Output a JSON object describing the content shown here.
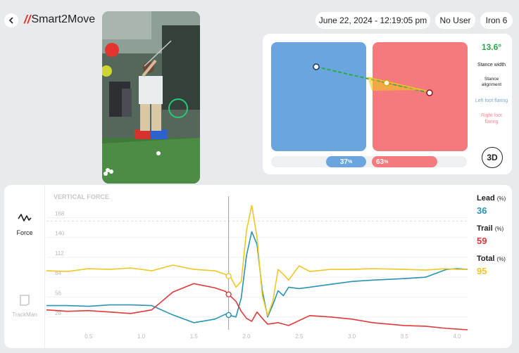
{
  "header": {
    "app_name": "Smart2Move",
    "datetime": "June 22, 2024 - 12:19:05 pm",
    "user": "No User",
    "club": "Iron 6"
  },
  "stance": {
    "angle": "13.6°",
    "labels": {
      "stance_width": "Stance width",
      "stance_alignment": "Stance alignment",
      "left_foot_flaring": "Left foot flaring",
      "right_foot_flaring": "Right foot flaring"
    },
    "left_pct": "37",
    "right_pct": "63",
    "pct_unit": "%",
    "view_button": "3D"
  },
  "sidebar": {
    "force_label": "Force",
    "trackman_label": "TrackMan"
  },
  "chart_title": "VERTICAL FORCE",
  "legend": {
    "lead_label": "Lead",
    "lead_unit": "(%)",
    "lead_value": "36",
    "trail_label": "Trail",
    "trail_unit": "(%)",
    "trail_value": "59",
    "total_label": "Total",
    "total_unit": "(%)",
    "total_value": "95"
  },
  "colors": {
    "lead": "#2a93b5",
    "trail": "#e0393b",
    "total": "#f2c624",
    "left_box": "#6aa6dd",
    "right_box": "#f47a7d",
    "accent_green": "#2aa84a"
  },
  "chart_data": {
    "type": "line",
    "title": "VERTICAL FORCE",
    "xlabel": "",
    "ylabel": "",
    "xlim": [
      0.1,
      4.1
    ],
    "ylim": [
      10,
      198
    ],
    "x_ticks": [
      "0.5",
      "1.0",
      "1.5",
      "2.0",
      "2.5",
      "3.0",
      "3.5",
      "4.0"
    ],
    "x_tick_values": [
      0.5,
      1.0,
      1.5,
      2.0,
      2.5,
      3.0,
      3.5,
      4.0
    ],
    "y_ticks": [
      "28",
      "56",
      "84",
      "112",
      "140",
      "168"
    ],
    "y_tick_values": [
      28,
      56,
      84,
      112,
      140,
      168
    ],
    "cursor_x": 1.83,
    "series": [
      {
        "name": "Lead",
        "x": [
          0.1,
          0.3,
          0.5,
          0.7,
          0.9,
          1.1,
          1.3,
          1.5,
          1.7,
          1.8,
          1.9,
          1.95,
          2.0,
          2.05,
          2.1,
          2.15,
          2.2,
          2.25,
          2.3,
          2.35,
          2.4,
          2.5,
          2.6,
          2.8,
          3.0,
          3.2,
          3.5,
          3.7,
          3.9,
          4.0,
          4.1
        ],
        "y": [
          44,
          44,
          43,
          45,
          45,
          44,
          31,
          20,
          25,
          32,
          28,
          55,
          115,
          148,
          130,
          65,
          28,
          45,
          65,
          58,
          70,
          68,
          70,
          74,
          78,
          80,
          82,
          84,
          95,
          96,
          95
        ]
      },
      {
        "name": "Trail",
        "x": [
          0.1,
          0.3,
          0.5,
          0.7,
          0.9,
          1.1,
          1.3,
          1.5,
          1.7,
          1.8,
          1.9,
          1.95,
          2.0,
          2.05,
          2.1,
          2.15,
          2.2,
          2.3,
          2.4,
          2.6,
          2.8,
          3.0,
          3.2,
          3.5,
          3.7,
          3.9,
          4.1
        ],
        "y": [
          38,
          36,
          37,
          35,
          33,
          38,
          63,
          75,
          69,
          64,
          50,
          36,
          26,
          22,
          35,
          26,
          18,
          20,
          16,
          30,
          28,
          25,
          20,
          16,
          15,
          12,
          10
        ]
      },
      {
        "name": "Total",
        "x": [
          0.1,
          0.3,
          0.5,
          0.7,
          0.9,
          1.1,
          1.3,
          1.5,
          1.7,
          1.8,
          1.85,
          1.9,
          1.95,
          2.0,
          2.05,
          2.1,
          2.15,
          2.2,
          2.25,
          2.3,
          2.35,
          2.4,
          2.5,
          2.6,
          2.8,
          3.0,
          3.2,
          3.5,
          3.7,
          3.9,
          4.0,
          4.1
        ],
        "y": [
          93,
          92,
          96,
          95,
          97,
          93,
          101,
          95,
          93,
          88,
          84,
          70,
          78,
          150,
          185,
          140,
          58,
          30,
          50,
          95,
          88,
          80,
          100,
          92,
          95,
          95,
          96,
          95,
          94,
          96,
          95,
          95
        ]
      }
    ]
  }
}
